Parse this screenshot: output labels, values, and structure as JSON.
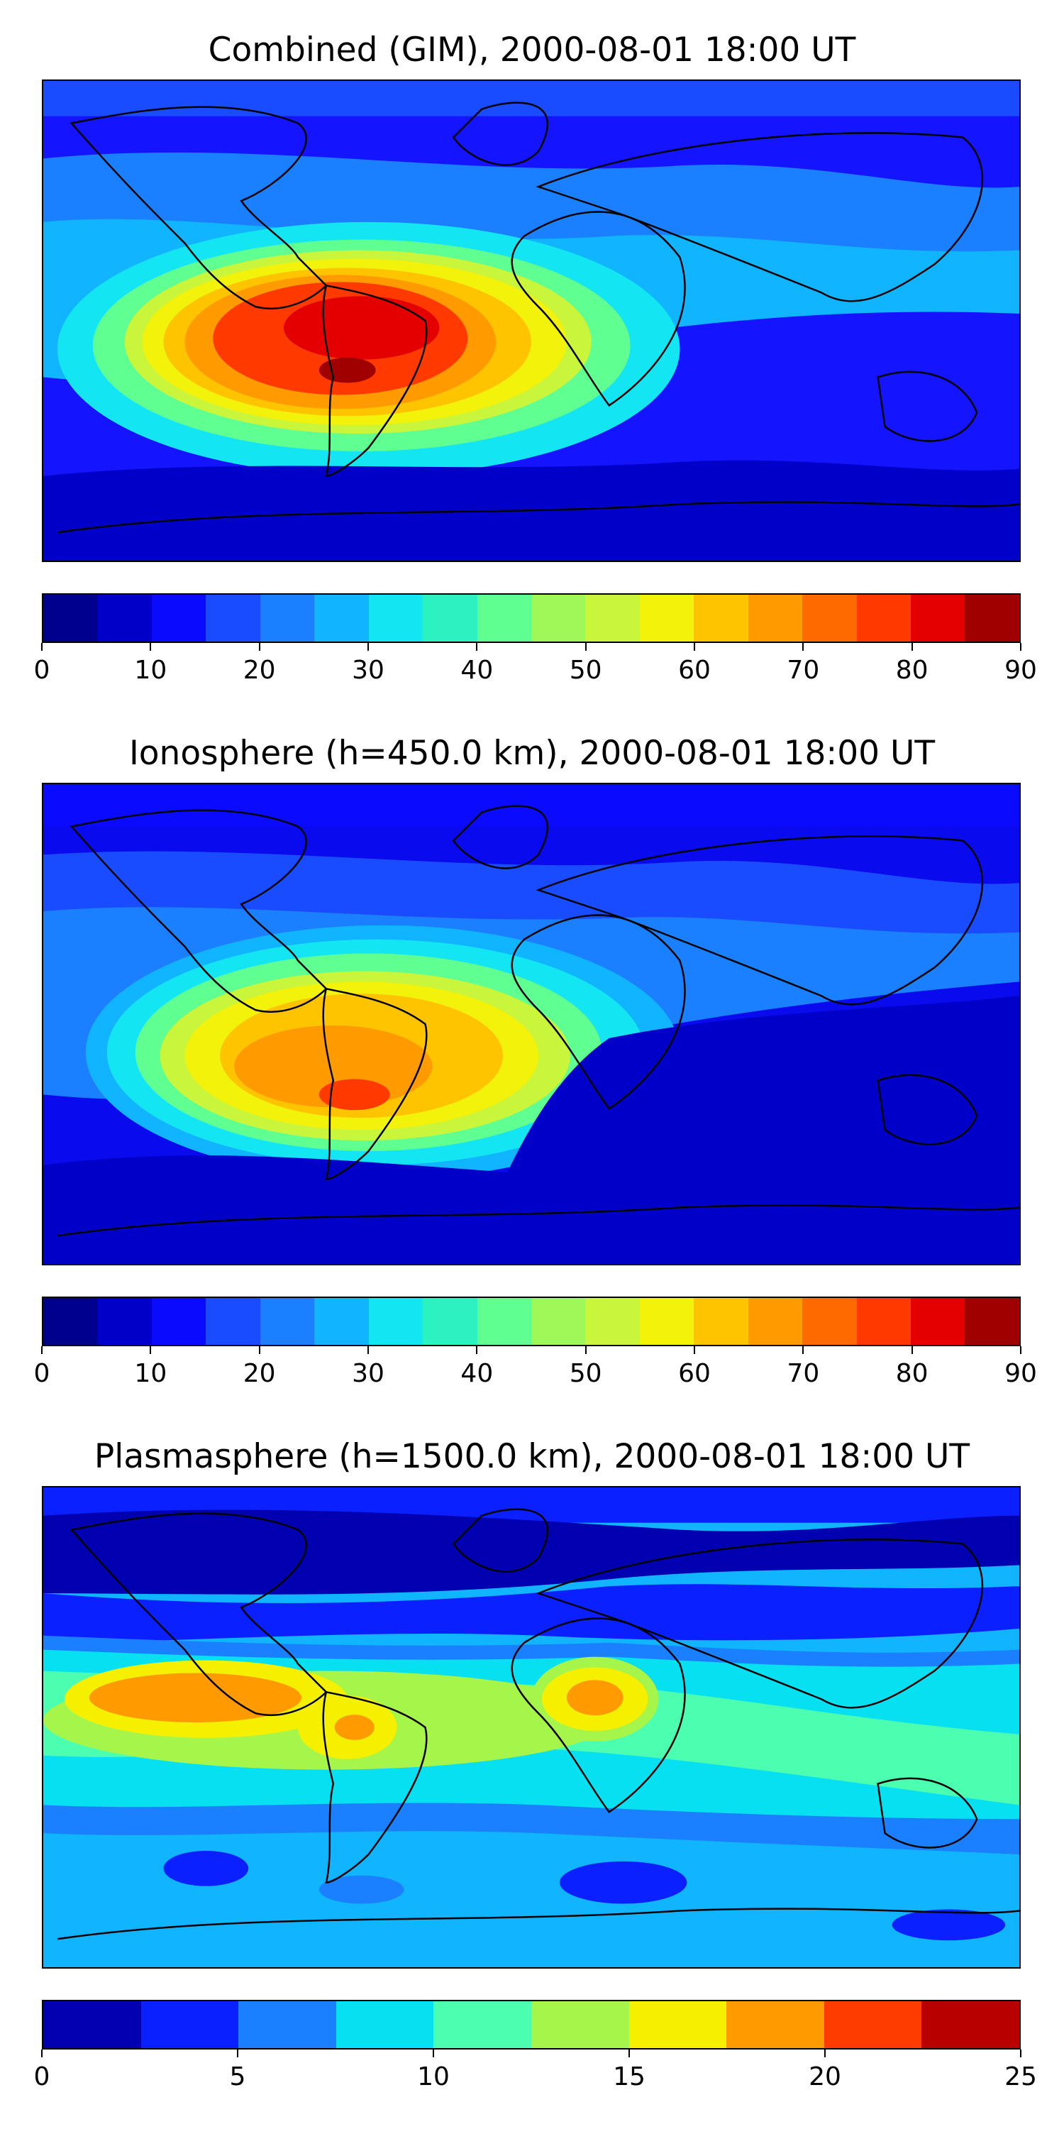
{
  "panels": [
    {
      "title": "Combined (GIM), 2000-08-01 18:00 UT",
      "background": "#1414ff",
      "colorbar": {
        "colors": [
          "#00008f",
          "#0000c8",
          "#0a0aff",
          "#1a4cff",
          "#1a80ff",
          "#10b4ff",
          "#13e6f2",
          "#2cf2c2",
          "#60ff92",
          "#9ef858",
          "#c9f53a",
          "#f2f20a",
          "#ffc400",
          "#ff9a00",
          "#ff6a00",
          "#ff3a00",
          "#e40000",
          "#a00000"
        ],
        "ticks": [
          {
            "label": "0",
            "value": 0
          },
          {
            "label": "10",
            "value": 10
          },
          {
            "label": "20",
            "value": 20
          },
          {
            "label": "30",
            "value": 30
          },
          {
            "label": "40",
            "value": 40
          },
          {
            "label": "50",
            "value": 50
          },
          {
            "label": "60",
            "value": 60
          },
          {
            "label": "70",
            "value": 70
          },
          {
            "label": "80",
            "value": 80
          },
          {
            "label": "90",
            "value": 90
          }
        ],
        "range": [
          0,
          90
        ]
      }
    },
    {
      "title": "Ionosphere  (h=450.0 km), 2000-08-01 18:00 UT",
      "background": "#0a0aee",
      "colorbar": {
        "colors": [
          "#00008f",
          "#0000c8",
          "#0a0aff",
          "#1a4cff",
          "#1a80ff",
          "#10b4ff",
          "#13e6f2",
          "#2cf2c2",
          "#60ff92",
          "#9ef858",
          "#c9f53a",
          "#f2f20a",
          "#ffc400",
          "#ff9a00",
          "#ff6a00",
          "#ff3a00",
          "#e40000",
          "#a00000"
        ],
        "ticks": [
          {
            "label": "0",
            "value": 0
          },
          {
            "label": "10",
            "value": 10
          },
          {
            "label": "20",
            "value": 20
          },
          {
            "label": "30",
            "value": 30
          },
          {
            "label": "40",
            "value": 40
          },
          {
            "label": "50",
            "value": 50
          },
          {
            "label": "60",
            "value": 60
          },
          {
            "label": "70",
            "value": 70
          },
          {
            "label": "80",
            "value": 80
          },
          {
            "label": "90",
            "value": 90
          }
        ],
        "range": [
          0,
          90
        ]
      }
    },
    {
      "title": "Plasmasphere (h=1500.0 km), 2000-08-01 18:00 UT",
      "background": "#10b4ff",
      "colorbar": {
        "colors": [
          "#0000b0",
          "#0a20ff",
          "#1a80ff",
          "#06e0f0",
          "#4cffb0",
          "#a6f54a",
          "#f4f000",
          "#ff9a00",
          "#ff3c00",
          "#b80000"
        ],
        "ticks": [
          {
            "label": "0",
            "value": 0
          },
          {
            "label": "5",
            "value": 5
          },
          {
            "label": "10",
            "value": 10
          },
          {
            "label": "15",
            "value": 15
          },
          {
            "label": "20",
            "value": 20
          },
          {
            "label": "25",
            "value": 25
          }
        ],
        "range": [
          0,
          25
        ]
      }
    }
  ]
}
